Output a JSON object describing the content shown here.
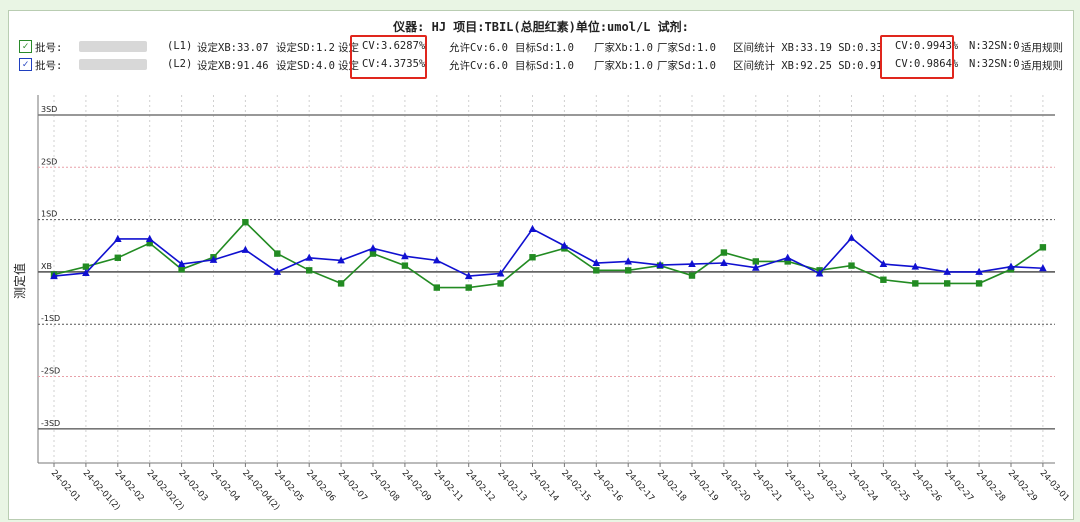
{
  "header": {
    "title": "仪器: HJ          项目:TBIL(总胆红素)单位:umol/L   试剂:"
  },
  "rows": [
    {
      "checkbox_color": "#2a8a2a",
      "check": "✓",
      "batch_label": "批号:",
      "level": "(L1)",
      "set_xb": "设定XB:33.07",
      "set_sd": "设定SD:1.2",
      "set_cv_label": "设定",
      "cv": "CV:3.6287%",
      "allow_cv": "允许Cv:6.0",
      "target_sd": "目标Sd:1.0",
      "maker_xb": "厂家Xb:1.0",
      "maker_sd": "厂家Sd:1.0",
      "interval": "区间统计  XB:33.19  SD:0.33",
      "interval_cv": "CV:0.9943%",
      "n_info": "N:32SN:0",
      "rule": "适用规则"
    },
    {
      "checkbox_color": "#1f3fbf",
      "check": "✓",
      "batch_label": "批号:",
      "level": "(L2)",
      "set_xb": "设定XB:91.46",
      "set_sd": "设定SD:4.0",
      "set_cv_label": "设定",
      "cv": "CV:4.3735%",
      "allow_cv": "允许Cv:6.0",
      "target_sd": "目标Sd:1.0",
      "maker_xb": "厂家Xb:1.0",
      "maker_sd": "厂家Sd:1.0",
      "interval": "区间统计  XB:92.25  SD:0.91",
      "interval_cv": "CV:0.9864%",
      "n_info": "N:32SN:0",
      "rule": "适用规则"
    }
  ],
  "chart_data": {
    "type": "line",
    "ylabel": "测定值",
    "ylim": [
      -3.3,
      3.3
    ],
    "sd_labels": [
      {
        "v": 3,
        "label": "3SD"
      },
      {
        "v": 2,
        "label": "2SD"
      },
      {
        "v": 1,
        "label": "1SD"
      },
      {
        "v": 0,
        "label": "XB"
      },
      {
        "v": -1,
        "label": "-1SD"
      },
      {
        "v": -2,
        "label": "-2SD"
      },
      {
        "v": -3,
        "label": "-3SD"
      }
    ],
    "categories": [
      "24-02-01",
      "24-02-01(2)",
      "24-02-02",
      "24-02-02(2)",
      "24-02-03",
      "24-02-04",
      "24-02-04(2)",
      "24-02-05",
      "24-02-06",
      "24-02-07",
      "24-02-08",
      "24-02-09",
      "24-02-11",
      "24-02-12",
      "24-02-13",
      "24-02-14",
      "24-02-15",
      "24-02-16",
      "24-02-17",
      "24-02-18",
      "24-02-19",
      "24-02-20",
      "24-02-21",
      "24-02-22",
      "24-02-23",
      "24-02-24",
      "24-02-25",
      "24-02-26",
      "24-02-27",
      "24-02-28",
      "24-02-29",
      "24-03-01"
    ],
    "series": [
      {
        "name": "L1",
        "color": "#228b22",
        "marker": "square",
        "values": [
          -0.05,
          0.1,
          0.27,
          0.55,
          0.05,
          0.28,
          0.95,
          0.35,
          0.03,
          -0.22,
          0.35,
          0.12,
          -0.3,
          -0.3,
          -0.22,
          0.28,
          0.45,
          0.03,
          0.03,
          0.12,
          -0.07,
          0.37,
          0.2,
          0.2,
          0.03,
          0.12,
          -0.15,
          -0.22,
          -0.22,
          -0.22,
          0.05,
          0.47
        ]
      },
      {
        "name": "L2",
        "color": "#1010d0",
        "marker": "triangle",
        "values": [
          -0.08,
          -0.02,
          0.63,
          0.63,
          0.15,
          0.23,
          0.42,
          0.0,
          0.27,
          0.22,
          0.45,
          0.3,
          0.22,
          -0.08,
          -0.03,
          0.82,
          0.5,
          0.17,
          0.2,
          0.13,
          0.15,
          0.17,
          0.08,
          0.27,
          -0.03,
          0.65,
          0.15,
          0.1,
          0.0,
          0.0,
          0.1,
          0.07
        ]
      }
    ],
    "legend": "none",
    "grid": true
  }
}
